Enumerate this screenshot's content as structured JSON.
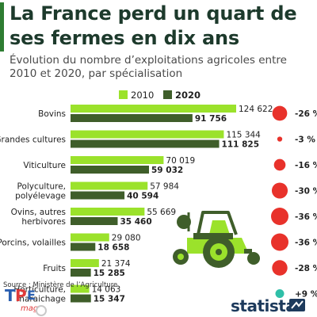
{
  "header": {
    "title": "La France perd un quart de ses fermes en dix ans",
    "subtitle": "Évolution du nombre d’exploitations agricoles entre 2010 et 2020, par spécialisation"
  },
  "colors": {
    "bar_2010": "#9be22b",
    "bar_2020": "#3f5e2a",
    "decline_dot": "#e8322b",
    "increase_dot": "#2fbfa8",
    "title_text": "#1d3a2c",
    "accent": "#2e7d32"
  },
  "chart_data": {
    "type": "bar",
    "orientation": "horizontal",
    "legend": "top",
    "grid": false,
    "categories": [
      "Bovins",
      "Grandes cultures",
      "Viticulture",
      "Polyculture, polyélevage",
      "Ovins, autres herbivores",
      "Porcins, volailles",
      "Fruits",
      "Horticulture, maraichage"
    ],
    "category_lines": [
      [
        "Bovins"
      ],
      [
        "Grandes cultures"
      ],
      [
        "Viticulture"
      ],
      [
        "Polyculture,",
        "polyélevage"
      ],
      [
        "Ovins, autres",
        "herbivores"
      ],
      [
        "Porcins, volailles"
      ],
      [
        "Fruits"
      ],
      [
        "Horticulture,",
        "maraichage"
      ]
    ],
    "series": [
      {
        "name": "2010",
        "values": [
          124622,
          115344,
          70019,
          57984,
          55669,
          29080,
          21374,
          14063
        ],
        "labels": [
          "124 622",
          "115 344",
          "70 019",
          "57 984",
          "55 669",
          "29 080",
          "21 374",
          "14 063"
        ]
      },
      {
        "name": "2020",
        "values": [
          91756,
          111825,
          59032,
          40594,
          35460,
          18658,
          15285,
          15347
        ],
        "labels": [
          "91 756",
          "111 825",
          "59 032",
          "40 594",
          "35 460",
          "18 658",
          "15 285",
          "15 347"
        ]
      }
    ],
    "change_labels": [
      "-26 %",
      "-3 %",
      "-16 %",
      "-30 %",
      "-36 %",
      "-36 %",
      "-28 %",
      "+9 %"
    ],
    "change_values": [
      -26,
      -3,
      -16,
      -30,
      -36,
      -36,
      -28,
      9
    ],
    "xlim": [
      0,
      124622
    ]
  },
  "footer": {
    "source": "Source : Ministère de l’Agriculture",
    "brand": "statista"
  }
}
